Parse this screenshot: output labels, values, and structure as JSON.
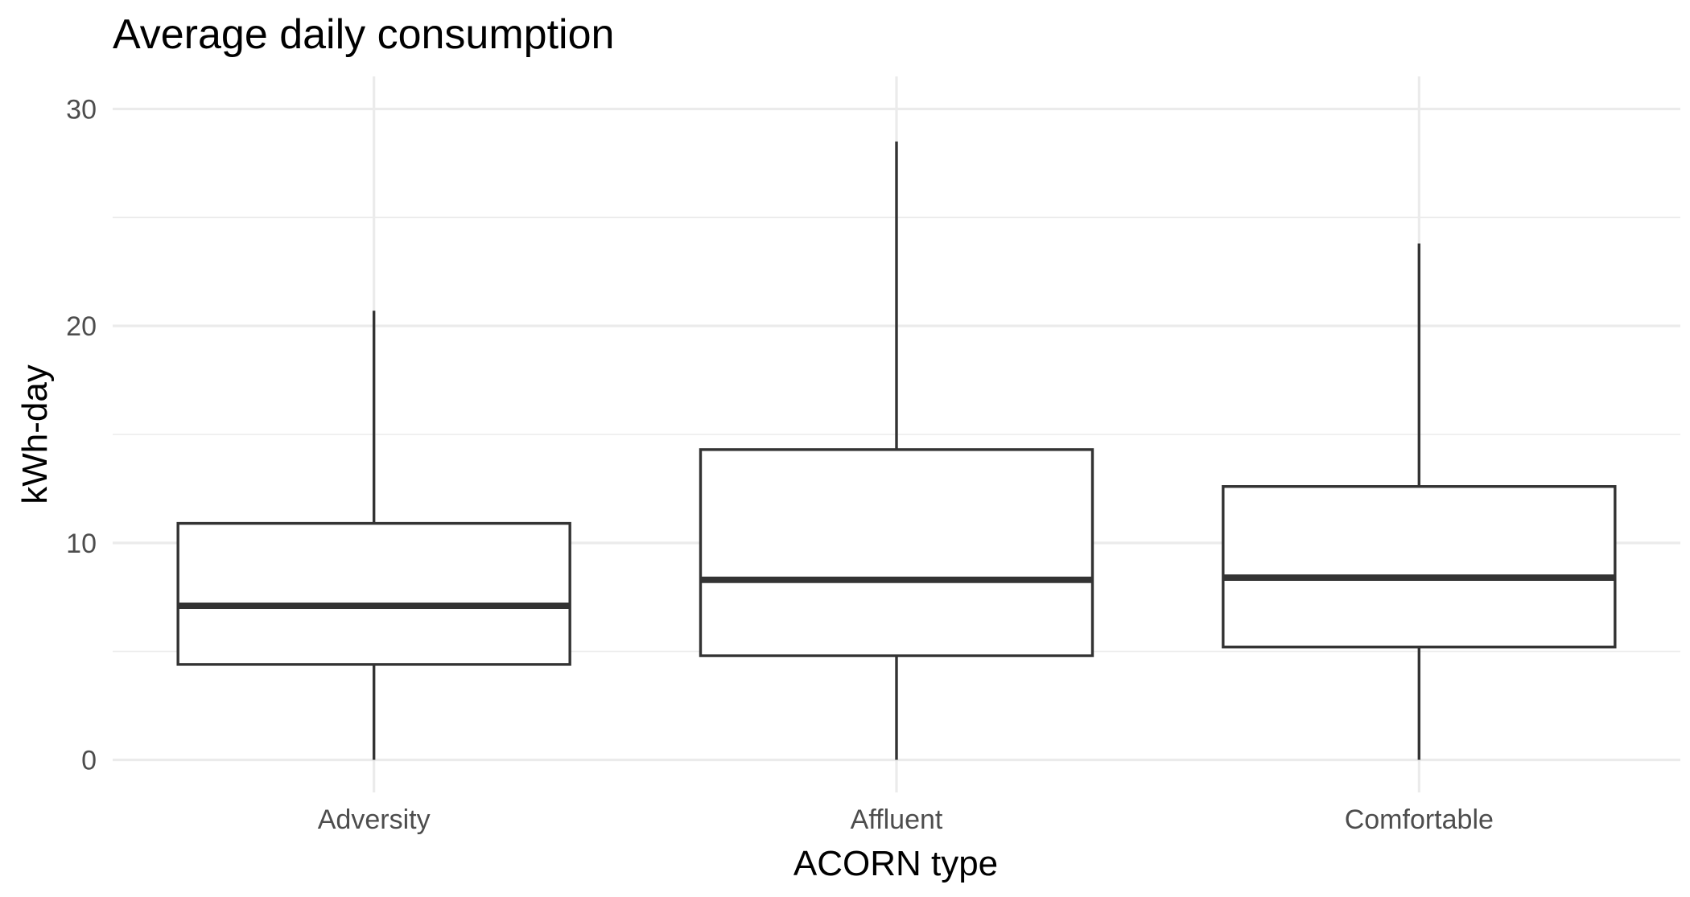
{
  "chart_data": {
    "type": "box",
    "title": "Average daily consumption",
    "xlabel": "ACORN type",
    "ylabel": "kWh-day",
    "ylim": [
      -1.5,
      31.5
    ],
    "y_ticks": [
      0,
      10,
      20,
      30
    ],
    "y_tick_labels": [
      "0",
      "10",
      "20",
      "30"
    ],
    "grid": true,
    "categories": [
      "Adversity",
      "Affluent",
      "Comfortable"
    ],
    "series": [
      {
        "category": "Adversity",
        "min": 0,
        "q1": 4.4,
        "median": 7.1,
        "q3": 10.9,
        "max": 20.7
      },
      {
        "category": "Affluent",
        "min": 0,
        "q1": 4.8,
        "median": 8.3,
        "q3": 14.3,
        "max": 28.5
      },
      {
        "category": "Comfortable",
        "min": 0,
        "q1": 5.2,
        "median": 8.4,
        "q3": 12.6,
        "max": 23.8
      }
    ],
    "colors": {
      "box_line": "#333333",
      "box_fill": "#ffffff",
      "grid": "#ebebeb"
    }
  }
}
